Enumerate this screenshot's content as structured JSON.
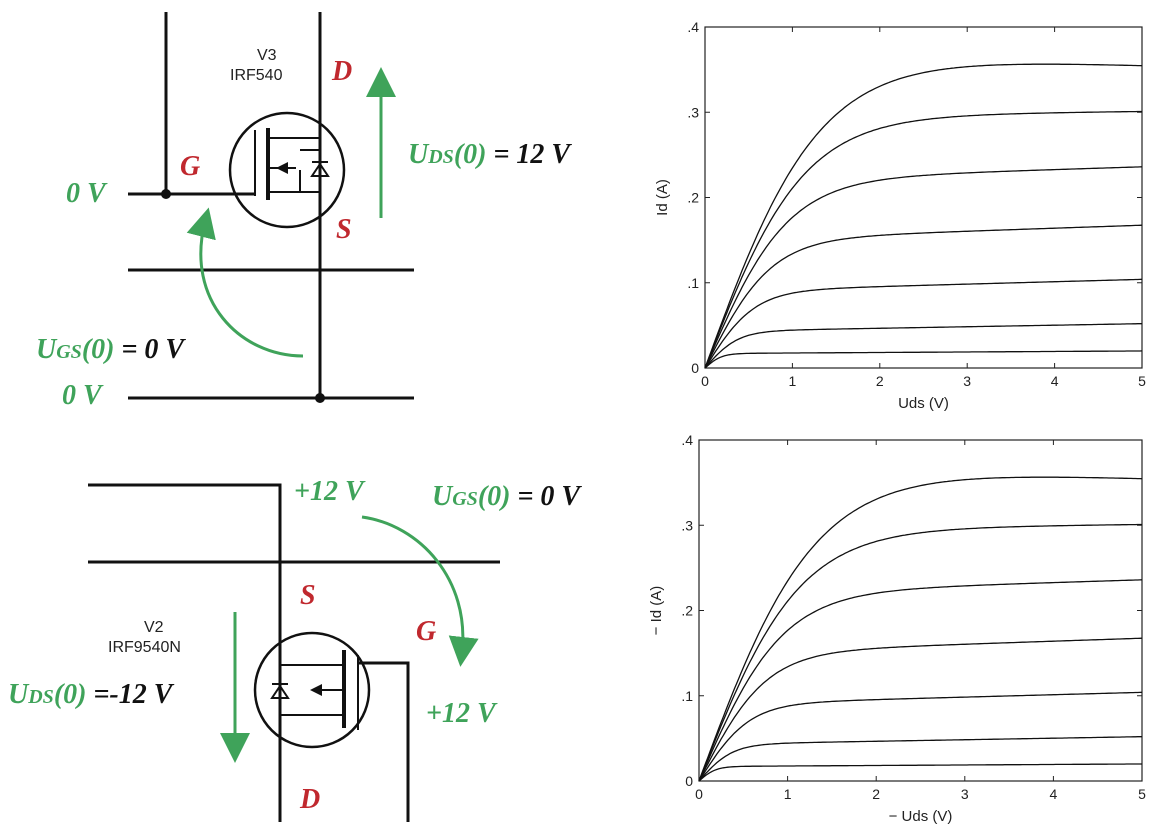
{
  "colors": {
    "wire": "#111111",
    "pin_label": "#c0282e",
    "annotation": "#3fa35a",
    "equation_value": "#111111",
    "curve": "#111111"
  },
  "circuit_top": {
    "part_ref": "V3",
    "part_name": "IRF540",
    "pin_d": "D",
    "pin_g": "G",
    "pin_s": "S",
    "gate_voltage": "0 V",
    "source_voltage": "0 V",
    "uds_prefix": "U",
    "uds_sub": "DS",
    "uds_arg": "(0)",
    "uds_value": " = 12 V",
    "ugs_prefix": "U",
    "ugs_sub": "GS",
    "ugs_arg": "(0)",
    "ugs_value": " = 0 V"
  },
  "circuit_bottom": {
    "part_ref": "V2",
    "part_name": "IRF9540N",
    "pin_s": "S",
    "pin_g": "G",
    "pin_d": "D",
    "source_voltage": "+12 V",
    "gate_voltage": "+12 V",
    "ugs_prefix": "U",
    "ugs_sub": "GS",
    "ugs_arg": "(0)",
    "ugs_value": " = 0 V",
    "uds_prefix": "U",
    "uds_sub": "DS",
    "uds_arg": "(0)",
    "uds_value": " =-12 V"
  },
  "chart_data": [
    {
      "type": "line",
      "xlabel": "Uds (V)",
      "ylabel": "Id (A)",
      "xlim": [
        0,
        5
      ],
      "ylim": [
        0,
        0.4
      ],
      "x_ticks": [
        "0",
        "1",
        "2",
        "3",
        "4",
        "5"
      ],
      "y_ticks": [
        "0",
        ".1",
        ".2",
        ".3",
        ".4"
      ],
      "series": [
        {
          "sat": 0.017,
          "slope": 0.0006
        },
        {
          "sat": 0.043,
          "slope": 0.0018
        },
        {
          "sat": 0.09,
          "slope": 0.0028
        },
        {
          "sat": 0.15,
          "slope": 0.0035
        },
        {
          "sat": 0.22,
          "slope": 0.0032
        },
        {
          "sat": 0.295,
          "slope": 0.0012
        },
        {
          "sat": 0.37,
          "slope": -0.003
        }
      ]
    },
    {
      "type": "line",
      "xlabel": "− Uds (V)",
      "ylabel": "− Id (A)",
      "xlim": [
        0,
        5
      ],
      "ylim": [
        0,
        0.4
      ],
      "x_ticks": [
        "0",
        "1",
        "2",
        "3",
        "4",
        "5"
      ],
      "y_ticks": [
        "0",
        ".1",
        ".2",
        ".3",
        ".4"
      ],
      "series": [
        {
          "sat": 0.017,
          "slope": 0.0006
        },
        {
          "sat": 0.043,
          "slope": 0.0018
        },
        {
          "sat": 0.09,
          "slope": 0.0028
        },
        {
          "sat": 0.15,
          "slope": 0.0035
        },
        {
          "sat": 0.22,
          "slope": 0.0032
        },
        {
          "sat": 0.295,
          "slope": 0.0012
        },
        {
          "sat": 0.37,
          "slope": -0.003
        }
      ]
    }
  ]
}
